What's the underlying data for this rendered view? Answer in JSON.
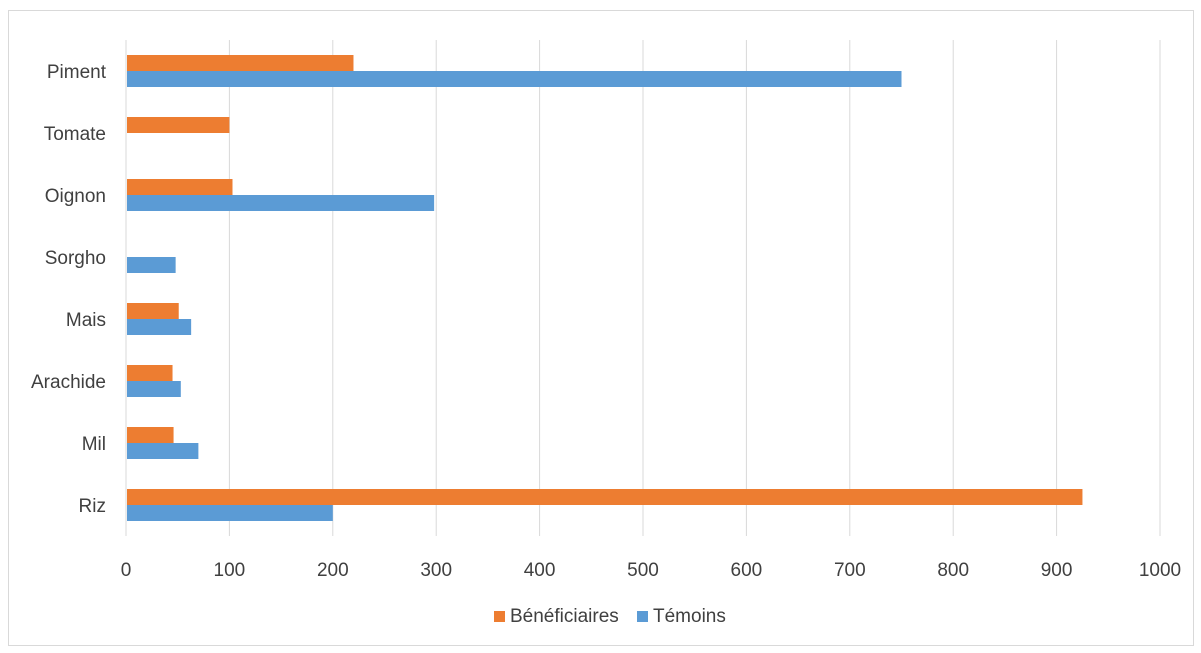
{
  "chart_data": {
    "type": "bar",
    "orientation": "horizontal",
    "title": "",
    "xlabel": "",
    "ylabel": "",
    "categories": [
      "Piment",
      "Tomate",
      "Oignon",
      "Sorgho",
      "Mais",
      "Arachide",
      "Mil",
      "Riz"
    ],
    "series": [
      {
        "name": "Bénéficiaires",
        "color": "#ED7D31",
        "values": [
          220,
          100,
          103,
          null,
          51,
          45,
          46,
          925
        ]
      },
      {
        "name": "Témoins",
        "color": "#5B9BD5",
        "values": [
          750,
          null,
          298,
          48,
          63,
          53,
          70,
          200
        ]
      }
    ],
    "xlim": [
      0,
      1000
    ],
    "xticks": [
      0,
      100,
      200,
      300,
      400,
      500,
      600,
      700,
      800,
      900,
      1000
    ],
    "grid": "vertical",
    "legend_position": "bottom"
  }
}
